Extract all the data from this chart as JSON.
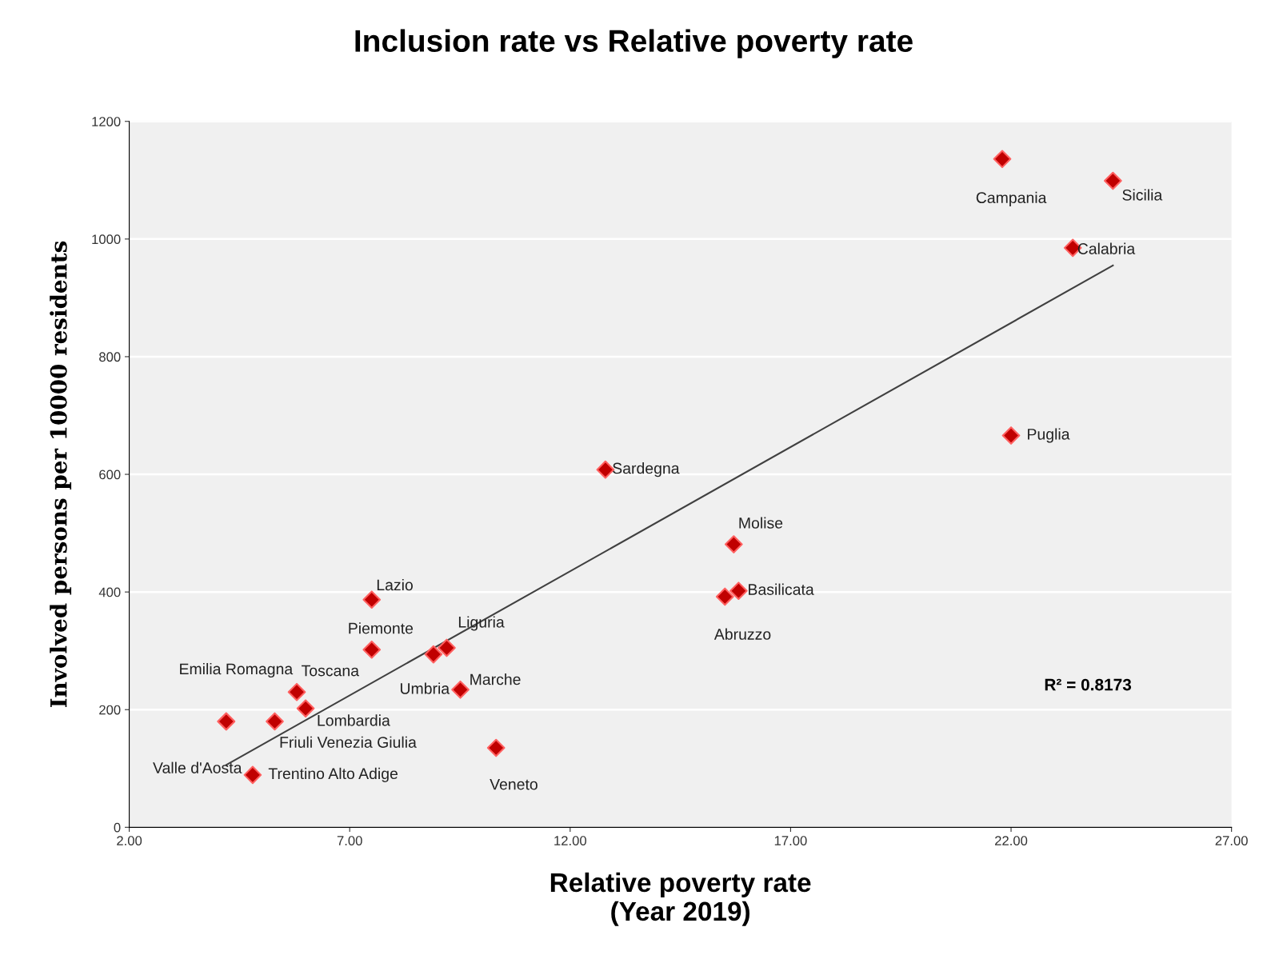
{
  "chart_data": {
    "type": "scatter",
    "title": "Inclusion rate vs Relative poverty rate",
    "xlabel": "Relative poverty rate\n(Year 2019)",
    "ylabel": "Involved persons per 10000 residents",
    "xlim": [
      2,
      27
    ],
    "ylim": [
      0,
      1200
    ],
    "xticks": [
      {
        "value": 2,
        "label": "2.00"
      },
      {
        "value": 7,
        "label": "7.00"
      },
      {
        "value": 12,
        "label": "12.00"
      },
      {
        "value": 17,
        "label": "17.00"
      },
      {
        "value": 22,
        "label": "22.00"
      },
      {
        "value": 27,
        "label": "27.00"
      }
    ],
    "yticks": [
      0,
      200,
      400,
      600,
      800,
      1000,
      1200
    ],
    "grid": "y",
    "series": [
      {
        "marker": "diamond",
        "color": "#c00000",
        "x": [
          21.8,
          24.31,
          23.4,
          22.0,
          12.8,
          15.71,
          15.82,
          15.51,
          7.5,
          7.5,
          9.2,
          8.9,
          9.51,
          10.32,
          5.8,
          6.0,
          5.3,
          4.2,
          4.2,
          4.8
        ],
        "values": [
          1136,
          1099,
          985,
          666,
          608,
          481,
          402,
          392,
          387,
          302,
          305,
          294,
          234,
          135,
          230,
          202,
          180,
          180,
          180,
          89
        ]
      },
      {
        "type": "line",
        "color": "#404040",
        "x": [
          4.2,
          24.31
        ],
        "values": [
          106,
          955
        ]
      }
    ],
    "annotations": [
      {
        "text": "Campania",
        "x": 21.8,
        "y": 1136
      },
      {
        "text": "Sicilia",
        "x": 24.31,
        "y": 1099
      },
      {
        "text": "Calabria",
        "x": 23.4,
        "y": 985
      },
      {
        "text": "Puglia",
        "x": 22.0,
        "y": 666
      },
      {
        "text": "Sardegna",
        "x": 12.8,
        "y": 608
      },
      {
        "text": "Molise",
        "x": 15.71,
        "y": 481
      },
      {
        "text": "Basilicata",
        "x": 15.82,
        "y": 402
      },
      {
        "text": "Abruzzo",
        "x": 15.51,
        "y": 392
      },
      {
        "text": "Lazio",
        "x": 7.5,
        "y": 387
      },
      {
        "text": "Piemonte",
        "x": 7.5,
        "y": 302
      },
      {
        "text": "Liguria",
        "x": 9.2,
        "y": 305
      },
      {
        "text": "Umbria",
        "x": 8.9,
        "y": 294
      },
      {
        "text": "Marche",
        "x": 9.51,
        "y": 234
      },
      {
        "text": "Veneto",
        "x": 10.32,
        "y": 135
      },
      {
        "text": "Toscana",
        "x": 5.8,
        "y": 230
      },
      {
        "text": "Lombardia",
        "x": 6.0,
        "y": 202
      },
      {
        "text": "Friuli Venezia Giulia",
        "x": 5.3,
        "y": 180
      },
      {
        "text": "Emilia Romagna",
        "x": 4.2,
        "y": 180
      },
      {
        "text": "Valle d'Aosta",
        "x": 4.2,
        "y": 180
      },
      {
        "text": "Trentino Alto Adige",
        "x": 4.8,
        "y": 89
      },
      "R² = 0.8173"
    ]
  }
}
